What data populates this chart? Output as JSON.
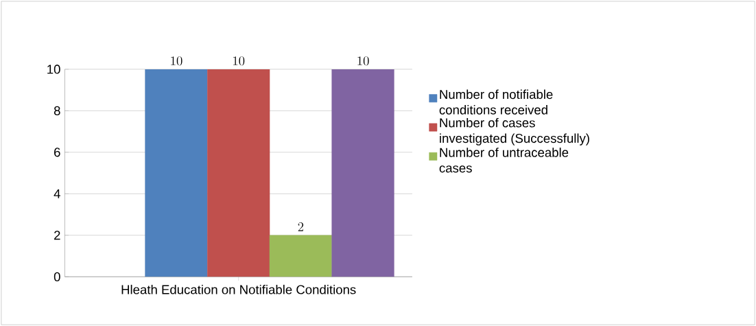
{
  "chart_data": {
    "type": "bar",
    "categories": [
      "Hleath Education on Notifiable Conditions"
    ],
    "series": [
      {
        "name": "Number of notifiable conditions received",
        "color": "#4f81bd",
        "values": [
          10
        ]
      },
      {
        "name": "Number of cases investigated (Successfully)",
        "color": "#c0504d",
        "values": [
          10
        ]
      },
      {
        "name": "Number of untraceable cases",
        "color": "#9bbb59",
        "values": [
          2
        ]
      },
      {
        "color": "#8064a2",
        "values": [
          10
        ]
      }
    ],
    "ylim": [
      0,
      10
    ],
    "yticks": [
      0,
      2,
      4,
      6,
      8,
      10
    ],
    "grid": "y",
    "legend": "right",
    "data_labels": true
  }
}
